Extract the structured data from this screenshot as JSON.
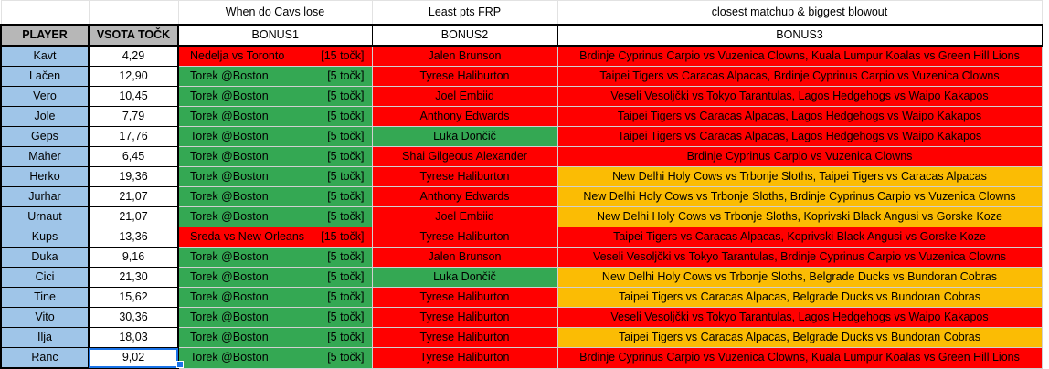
{
  "top_labels": {
    "b1": "When do Cavs lose",
    "b2": "Least pts FRP",
    "b3": "closest matchup & biggest blowout"
  },
  "headers": {
    "player": "PLAYER",
    "score": "VSOTA TOČK",
    "b1": "BONUS1",
    "b2": "BONUS2",
    "b3": "BONUS3"
  },
  "colors": {
    "red": "#ff0000",
    "green": "#34a853",
    "orange": "#fbbc04",
    "player_blue": "#9fc5e8",
    "header_gray": "#b7b7b7"
  },
  "rows": [
    {
      "player": "Kavt",
      "score": "4,29",
      "b1": "Nedelja vs Toronto",
      "b1_pts": "[15 točk]",
      "b1_color": "red",
      "b2": "Jalen Brunson",
      "b2_color": "red",
      "b3": "Brdinje Cyprinus Carpio vs Vuzenica Clowns, Kuala Lumpur Koalas vs Green Hill Lions",
      "b3_color": "red"
    },
    {
      "player": "Lačen",
      "score": "12,90",
      "b1": "Torek @Boston",
      "b1_pts": "[5 točk]",
      "b1_color": "green",
      "b2": "Tyrese Haliburton",
      "b2_color": "red",
      "b3": "Taipei Tigers vs Caracas Alpacas, Brdinje Cyprinus Carpio vs Vuzenica Clowns",
      "b3_color": "red"
    },
    {
      "player": "Vero",
      "score": "10,45",
      "b1": "Torek @Boston",
      "b1_pts": "[5 točk]",
      "b1_color": "green",
      "b2": "Joel Embiid",
      "b2_color": "red",
      "b3": "Veseli Vesoljčki vs Tokyo Tarantulas, Lagos Hedgehogs vs Waipo Kakapos",
      "b3_color": "red"
    },
    {
      "player": "Jole",
      "score": "7,79",
      "b1": "Torek @Boston",
      "b1_pts": "[5 točk]",
      "b1_color": "green",
      "b2": "Anthony Edwards",
      "b2_color": "red",
      "b3": "Taipei Tigers vs Caracas Alpacas, Lagos Hedgehogs vs Waipo Kakapos",
      "b3_color": "red"
    },
    {
      "player": "Geps",
      "score": "17,76",
      "b1": "Torek @Boston",
      "b1_pts": "[5 točk]",
      "b1_color": "green",
      "b2": "Luka Dončič",
      "b2_color": "green",
      "b3": "Taipei Tigers vs Caracas Alpacas, Lagos Hedgehogs vs Waipo Kakapos",
      "b3_color": "red"
    },
    {
      "player": "Maher",
      "score": "6,45",
      "b1": "Torek @Boston",
      "b1_pts": "[5 točk]",
      "b1_color": "green",
      "b2": "Shai Gilgeous Alexander",
      "b2_color": "red",
      "b3": "Brdinje Cyprinus Carpio vs Vuzenica Clowns",
      "b3_color": "red"
    },
    {
      "player": "Herko",
      "score": "19,36",
      "b1": "Torek @Boston",
      "b1_pts": "[5 točk]",
      "b1_color": "green",
      "b2": "Tyrese Haliburton",
      "b2_color": "red",
      "b3": "New Delhi Holy Cows vs Trbonje Sloths, Taipei Tigers vs Caracas Alpacas",
      "b3_color": "orange"
    },
    {
      "player": "Jurhar",
      "score": "21,07",
      "b1": "Torek @Boston",
      "b1_pts": "[5 točk]",
      "b1_color": "green",
      "b2": "Anthony Edwards",
      "b2_color": "red",
      "b3": "New Delhi Holy Cows vs Trbonje Sloths, Brdinje Cyprinus Carpio vs Vuzenica Clowns",
      "b3_color": "orange"
    },
    {
      "player": "Urnaut",
      "score": "21,07",
      "b1": "Torek @Boston",
      "b1_pts": "[5 točk]",
      "b1_color": "green",
      "b2": "Joel Embiid",
      "b2_color": "red",
      "b3": "New Delhi Holy Cows vs Trbonje Sloths, Koprivski Black Angusi vs Gorske Koze",
      "b3_color": "orange"
    },
    {
      "player": "Kups",
      "score": "13,36",
      "b1": "Sreda vs New Orleans",
      "b1_pts": "[15 točk]",
      "b1_color": "red",
      "b2": "Tyrese Haliburton",
      "b2_color": "red",
      "b3": "Taipei Tigers vs Caracas Alpacas, Koprivski Black Angusi vs Gorske Koze",
      "b3_color": "red"
    },
    {
      "player": "Duka",
      "score": "9,16",
      "b1": "Torek @Boston",
      "b1_pts": "[5 točk]",
      "b1_color": "green",
      "b2": "Jalen Brunson",
      "b2_color": "red",
      "b3": "Veseli Vesoljčki vs Tokyo Tarantulas, Brdinje Cyprinus Carpio vs Vuzenica Clowns",
      "b3_color": "red"
    },
    {
      "player": "Cici",
      "score": "21,30",
      "b1": "Torek @Boston",
      "b1_pts": "[5 točk]",
      "b1_color": "green",
      "b2": "Luka Dončič",
      "b2_color": "green",
      "b3": "New Delhi Holy Cows vs Trbonje Sloths, Belgrade Ducks vs Bundoran Cobras",
      "b3_color": "orange"
    },
    {
      "player": "Tine",
      "score": "15,62",
      "b1": "Torek @Boston",
      "b1_pts": "[5 točk]",
      "b1_color": "green",
      "b2": "Tyrese Haliburton",
      "b2_color": "red",
      "b3": "Taipei Tigers vs Caracas Alpacas, Belgrade Ducks vs Bundoran Cobras",
      "b3_color": "orange"
    },
    {
      "player": "Vito",
      "score": "30,36",
      "b1": "Torek @Boston",
      "b1_pts": "[5 točk]",
      "b1_color": "green",
      "b2": "Tyrese Haliburton",
      "b2_color": "red",
      "b3": "Veseli Vesoljčki vs Tokyo Tarantulas, Lagos Hedgehogs vs Waipo Kakapos",
      "b3_color": "red"
    },
    {
      "player": "Ilja",
      "score": "18,03",
      "b1": "Torek @Boston",
      "b1_pts": "[5 točk]",
      "b1_color": "green",
      "b2": "Tyrese Haliburton",
      "b2_color": "red",
      "b3": "Taipei Tigers vs Caracas Alpacas, Belgrade Ducks vs Bundoran Cobras",
      "b3_color": "orange"
    },
    {
      "player": "Ranc",
      "score": "9,02",
      "b1": "Torek @Boston",
      "b1_pts": "[5 točk]",
      "b1_color": "green",
      "b2": "Tyrese Haliburton",
      "b2_color": "red",
      "b3": "Brdinje Cyprinus Carpio vs Vuzenica Clowns, Kuala Lumpur Koalas vs Green Hill Lions",
      "b3_color": "red"
    }
  ]
}
